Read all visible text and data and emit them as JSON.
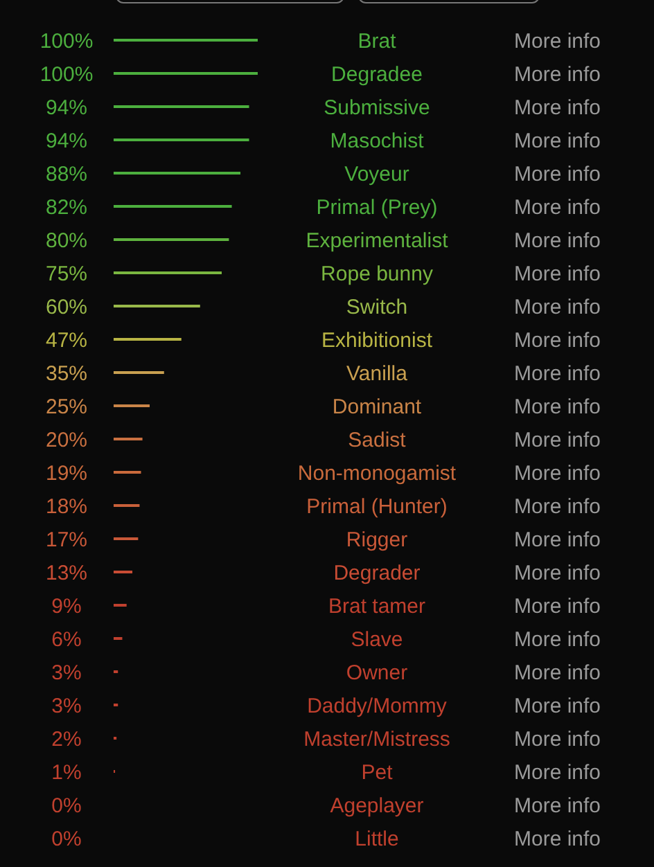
{
  "chart_data": {
    "type": "bar",
    "orientation": "horizontal",
    "categories": [
      "Brat",
      "Degradee",
      "Submissive",
      "Masochist",
      "Voyeur",
      "Primal (Prey)",
      "Experimentalist",
      "Rope bunny",
      "Switch",
      "Exhibitionist",
      "Vanilla",
      "Dominant",
      "Sadist",
      "Non-monogamist",
      "Primal (Hunter)",
      "Rigger",
      "Degrader",
      "Brat tamer",
      "Slave",
      "Owner",
      "Daddy/Mommy",
      "Master/Mistress",
      "Pet",
      "Ageplayer",
      "Little"
    ],
    "values": [
      100,
      100,
      94,
      94,
      88,
      82,
      80,
      75,
      60,
      47,
      35,
      25,
      20,
      19,
      18,
      17,
      13,
      9,
      6,
      3,
      3,
      2,
      1,
      0,
      0
    ],
    "value_labels": [
      "100%",
      "100%",
      "94%",
      "94%",
      "88%",
      "82%",
      "80%",
      "75%",
      "60%",
      "47%",
      "35%",
      "25%",
      "20%",
      "19%",
      "18%",
      "17%",
      "13%",
      "9%",
      "6%",
      "3%",
      "3%",
      "2%",
      "1%",
      "0%",
      "0%"
    ],
    "colors": [
      "#4caf3e",
      "#4caf3e",
      "#4caf3e",
      "#4caf3e",
      "#4caf3e",
      "#4caf3e",
      "#5eb23e",
      "#7ab640",
      "#99b84a",
      "#b8b444",
      "#c9a050",
      "#c98448",
      "#c97040",
      "#c96a3c",
      "#c9603a",
      "#c95838",
      "#c84c34",
      "#c0402e",
      "#c0402e",
      "#c0402e",
      "#c0402e",
      "#c0402e",
      "#c0402e",
      "#c0402e",
      "#c0402e"
    ],
    "annotations": [
      "More info",
      "More info",
      "More info",
      "More info",
      "More info",
      "More info",
      "More info",
      "More info",
      "More info",
      "More info",
      "More info",
      "More info",
      "More info",
      "More info",
      "More info",
      "More info",
      "More info",
      "More info",
      "More info",
      "More info",
      "More info",
      "More info",
      "More info",
      "More info",
      "More info"
    ]
  }
}
